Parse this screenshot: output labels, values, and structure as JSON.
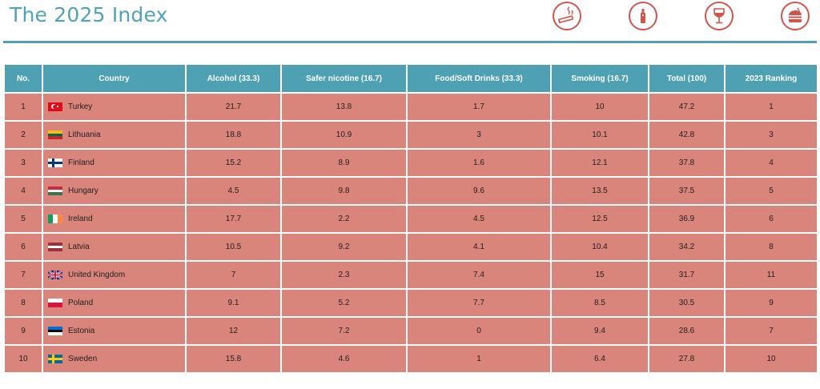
{
  "page_title": "The 2025 Index",
  "header_icons": [
    "smoking-icon",
    "vape-icon",
    "wine-glass-icon",
    "fast-food-icon"
  ],
  "colors": {
    "accent": "#4ea1b3",
    "row": "#d9857b",
    "icon": "#d2554b"
  },
  "table": {
    "headers": [
      "No.",
      "Country",
      "Alcohol (33.3)",
      "Safer nicotine (16.7)",
      "Food/Soft Drinks (33.3)",
      "Smoking (16.7)",
      "Total (100)",
      "2023 Ranking"
    ],
    "rows": [
      {
        "no": "1",
        "country": "Turkey",
        "flag": "turkey",
        "alcohol": "21.7",
        "nicotine": "13.8",
        "food": "1.7",
        "smoking": "10",
        "total": "47.2",
        "rank2023": "1"
      },
      {
        "no": "2",
        "country": "Lithuania",
        "flag": "lithuania",
        "alcohol": "18.8",
        "nicotine": "10.9",
        "food": "3",
        "smoking": "10.1",
        "total": "42.8",
        "rank2023": "3"
      },
      {
        "no": "3",
        "country": "Finland",
        "flag": "finland",
        "alcohol": "15.2",
        "nicotine": "8.9",
        "food": "1.6",
        "smoking": "12.1",
        "total": "37.8",
        "rank2023": "4"
      },
      {
        "no": "4",
        "country": "Hungary",
        "flag": "hungary",
        "alcohol": "4.5",
        "nicotine": "9.8",
        "food": "9.6",
        "smoking": "13.5",
        "total": "37.5",
        "rank2023": "5"
      },
      {
        "no": "5",
        "country": "Ireland",
        "flag": "ireland",
        "alcohol": "17.7",
        "nicotine": "2.2",
        "food": "4.5",
        "smoking": "12.5",
        "total": "36.9",
        "rank2023": "6"
      },
      {
        "no": "6",
        "country": "Latvia",
        "flag": "latvia",
        "alcohol": "10.5",
        "nicotine": "9.2",
        "food": "4.1",
        "smoking": "10.4",
        "total": "34.2",
        "rank2023": "8"
      },
      {
        "no": "7",
        "country": "United Kingdom",
        "flag": "uk",
        "alcohol": "7",
        "nicotine": "2.3",
        "food": "7.4",
        "smoking": "15",
        "total": "31.7",
        "rank2023": "11"
      },
      {
        "no": "8",
        "country": "Poland",
        "flag": "poland",
        "alcohol": "9.1",
        "nicotine": "5.2",
        "food": "7.7",
        "smoking": "8.5",
        "total": "30.5",
        "rank2023": "9"
      },
      {
        "no": "9",
        "country": "Estonia",
        "flag": "estonia",
        "alcohol": "12",
        "nicotine": "7.2",
        "food": "0",
        "smoking": "9.4",
        "total": "28.6",
        "rank2023": "7"
      },
      {
        "no": "10",
        "country": "Sweden",
        "flag": "sweden",
        "alcohol": "15.8",
        "nicotine": "4.6",
        "food": "1",
        "smoking": "6.4",
        "total": "27.8",
        "rank2023": "10"
      }
    ]
  }
}
